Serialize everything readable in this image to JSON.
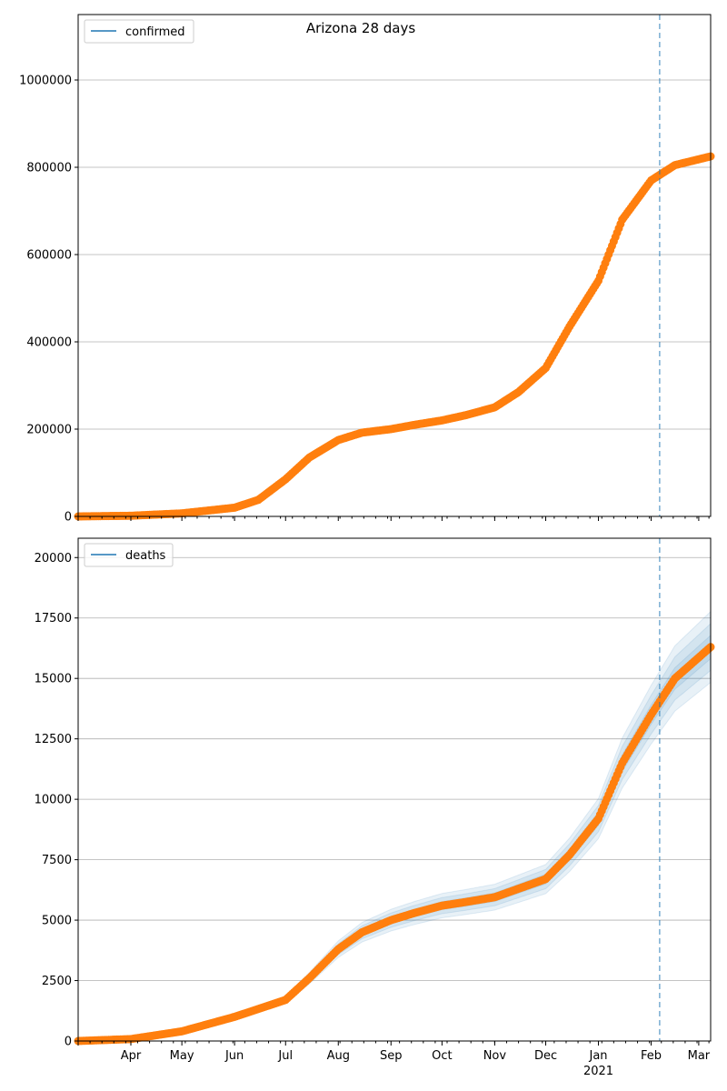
{
  "chart_data": [
    {
      "type": "scatter",
      "title": "Arizona 28 days",
      "legend": {
        "label": "confirmed",
        "color": "#1f77b4",
        "placement": "upper-left"
      },
      "ylim": [
        0,
        1150000
      ],
      "yticks": [
        0,
        200000,
        400000,
        600000,
        800000,
        1000000
      ],
      "ytick_labels": [
        "0",
        "200000",
        "400000",
        "600000",
        "800000",
        "1000000"
      ],
      "xlim": [
        "2020-03-01",
        "2021-03-08"
      ],
      "vline_date": "2021-02-06",
      "point_color": "#ff7f0e",
      "series": [
        {
          "x": [
            "2020-03-01",
            "2020-04-01",
            "2020-05-01",
            "2020-06-01",
            "2020-06-15",
            "2020-07-01",
            "2020-07-15",
            "2020-08-01",
            "2020-08-15",
            "2020-09-01",
            "2020-09-15",
            "2020-10-01",
            "2020-10-15",
            "2020-11-01",
            "2020-11-15",
            "2020-12-01",
            "2020-12-15",
            "2021-01-01",
            "2021-01-15",
            "2021-02-01",
            "2021-02-15",
            "2021-03-08"
          ],
          "y": [
            0,
            1500,
            7000,
            20000,
            38000,
            85000,
            135000,
            175000,
            192000,
            200000,
            210000,
            220000,
            232000,
            250000,
            285000,
            340000,
            435000,
            540000,
            680000,
            770000,
            805000,
            825000
          ]
        }
      ]
    },
    {
      "type": "scatter",
      "legend": {
        "label": "deaths",
        "color": "#1f77b4",
        "placement": "upper-left"
      },
      "ylim": [
        0,
        20800
      ],
      "yticks": [
        0,
        2500,
        5000,
        7500,
        10000,
        12500,
        15000,
        17500,
        20000
      ],
      "ytick_labels": [
        "0",
        "2500",
        "5000",
        "7500",
        "10000",
        "12500",
        "15000",
        "17500",
        "20000"
      ],
      "xlim": [
        "2020-03-01",
        "2021-03-08"
      ],
      "xtick_labels": [
        {
          "date": "2020-04-01",
          "label": "Apr"
        },
        {
          "date": "2020-05-01",
          "label": "May"
        },
        {
          "date": "2020-06-01",
          "label": "Jun"
        },
        {
          "date": "2020-07-01",
          "label": "Jul"
        },
        {
          "date": "2020-08-01",
          "label": "Aug"
        },
        {
          "date": "2020-09-01",
          "label": "Sep"
        },
        {
          "date": "2020-10-01",
          "label": "Oct"
        },
        {
          "date": "2020-11-01",
          "label": "Nov"
        },
        {
          "date": "2020-12-01",
          "label": "Dec"
        },
        {
          "date": "2021-01-01",
          "label": "Jan"
        },
        {
          "date": "2021-02-01",
          "label": "Feb"
        },
        {
          "date": "2021-03-01",
          "label": "Mar"
        }
      ],
      "year_label": "2021",
      "vline_date": "2021-02-06",
      "point_color": "#ff7f0e",
      "band_color": "#1f77b4",
      "series": [
        {
          "x": [
            "2020-03-01",
            "2020-04-01",
            "2020-05-01",
            "2020-06-01",
            "2020-07-01",
            "2020-07-15",
            "2020-08-01",
            "2020-08-15",
            "2020-09-01",
            "2020-09-15",
            "2020-10-01",
            "2020-10-15",
            "2020-11-01",
            "2020-11-15",
            "2020-12-01",
            "2020-12-15",
            "2021-01-01",
            "2021-01-15",
            "2021-02-01",
            "2021-02-15",
            "2021-03-08"
          ],
          "y": [
            0,
            80,
            400,
            1000,
            1700,
            2600,
            3800,
            4500,
            5000,
            5300,
            5600,
            5750,
            5950,
            6300,
            6700,
            7700,
            9200,
            11500,
            13500,
            15000,
            16300
          ]
        }
      ]
    }
  ]
}
